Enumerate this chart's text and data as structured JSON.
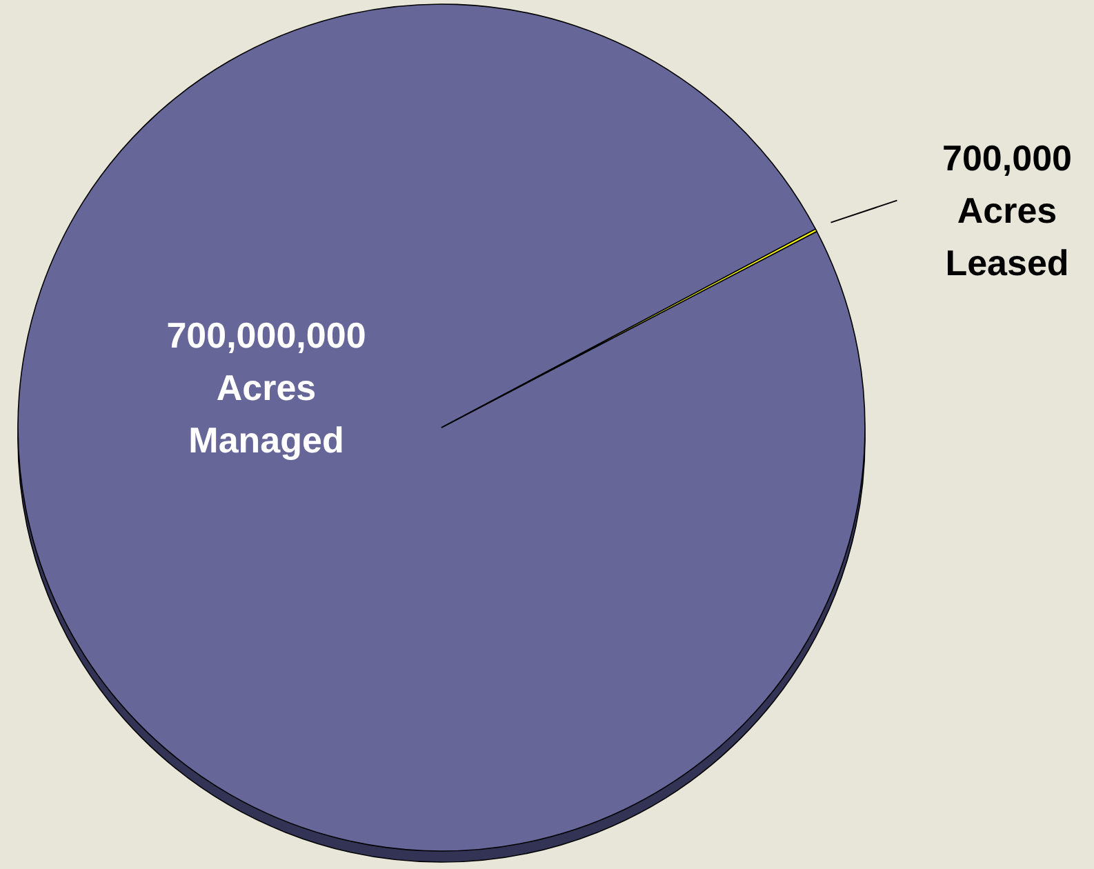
{
  "chart_data": {
    "type": "pie",
    "categories": [
      "Acres Managed",
      "Acres Leased"
    ],
    "values": [
      700000000,
      700000
    ],
    "value_labels": [
      "700,000,000",
      "700,000"
    ],
    "colors": [
      "#666699",
      "#ffff00"
    ]
  }
}
